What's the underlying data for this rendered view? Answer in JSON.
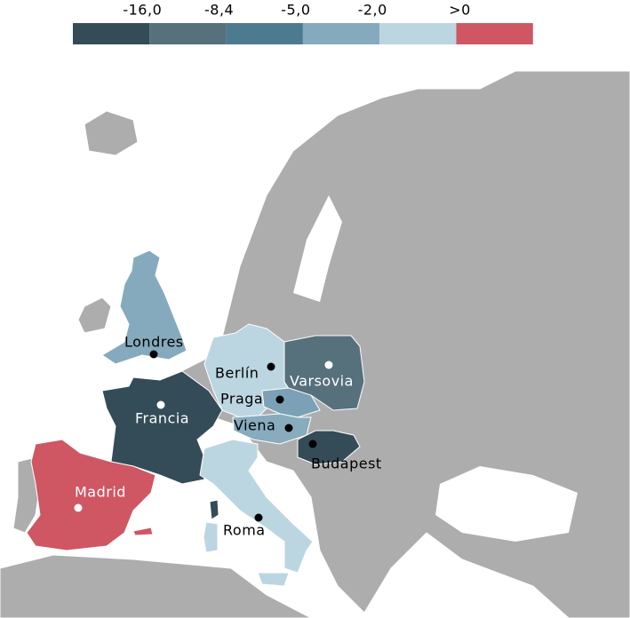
{
  "legend": {
    "labels": [
      "-16,0",
      "-8,4",
      "-5,0",
      "-2,0",
      ">0"
    ],
    "colors": [
      "#344c58",
      "#56707c",
      "#4c7a8e",
      "#86aabd",
      "#bcd6e1",
      "#cf5663"
    ]
  },
  "cities": [
    {
      "name": "Londres",
      "color": "#000000"
    },
    {
      "name": "Berlín",
      "color": "#000000"
    },
    {
      "name": "Varsovia",
      "color": "#ffffff"
    },
    {
      "name": "Praga",
      "color": "#000000"
    },
    {
      "name": "Francia",
      "color": "#ffffff"
    },
    {
      "name": "Viena",
      "color": "#000000"
    },
    {
      "name": "Budapest",
      "color": "#000000"
    },
    {
      "name": "Madrid",
      "color": "#ffffff"
    },
    {
      "name": "Roma",
      "color": "#000000"
    }
  ]
}
